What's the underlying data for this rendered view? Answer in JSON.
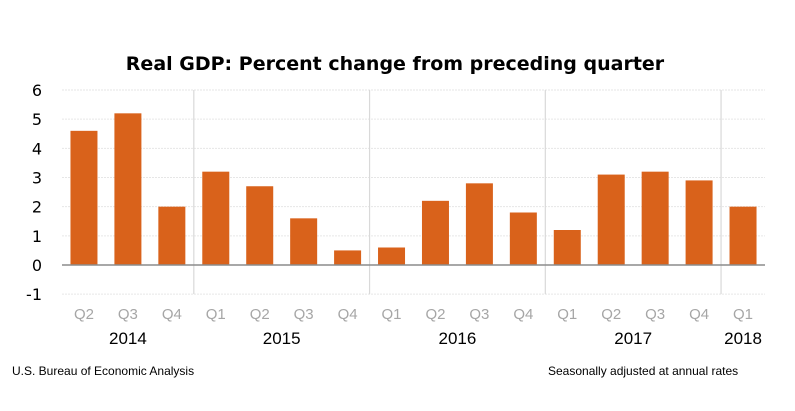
{
  "chart_data": {
    "type": "bar",
    "title": "Real GDP:  Percent change from preceding quarter",
    "xlabel": "",
    "ylabel": "",
    "ylim": [
      -1,
      6
    ],
    "yticks": [
      "6",
      "5",
      "4",
      "3",
      "2",
      "1",
      "0",
      "-1"
    ],
    "ytick_values": [
      6,
      5,
      4,
      3,
      2,
      1,
      0,
      -1
    ],
    "grid": true,
    "categories": [
      "Q2",
      "Q3",
      "Q4",
      "Q1",
      "Q2",
      "Q3",
      "Q4",
      "Q1",
      "Q2",
      "Q3",
      "Q4",
      "Q1",
      "Q2",
      "Q3",
      "Q4",
      "Q1"
    ],
    "years": [
      {
        "label": "2014",
        "start": 0,
        "count": 3
      },
      {
        "label": "2015",
        "start": 3,
        "count": 4
      },
      {
        "label": "2016",
        "start": 7,
        "count": 4
      },
      {
        "label": "2017",
        "start": 11,
        "count": 4
      },
      {
        "label": "2018",
        "start": 15,
        "count": 1
      }
    ],
    "series": [
      {
        "name": "Real GDP percent change",
        "color": "#d9621b",
        "values": [
          4.6,
          5.2,
          2.0,
          3.2,
          2.7,
          1.6,
          0.5,
          0.6,
          2.2,
          2.8,
          1.8,
          1.2,
          3.1,
          3.2,
          2.9,
          2.0
        ]
      }
    ],
    "source_note": "U.S. Bureau of Economic Analysis",
    "adjustment_note": "Seasonally adjusted at annual rates"
  }
}
